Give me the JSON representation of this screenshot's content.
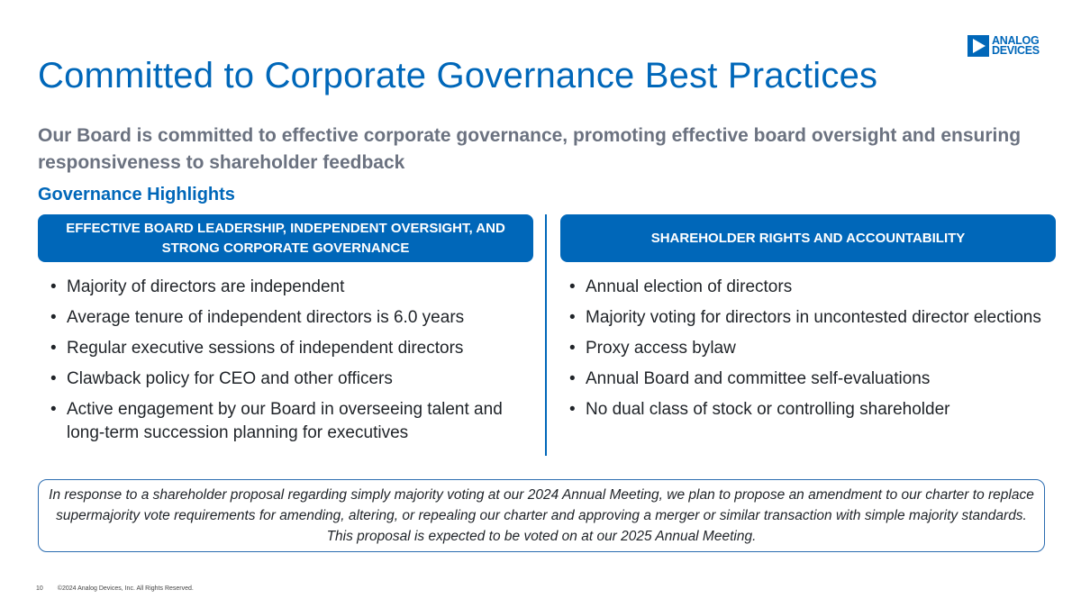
{
  "logo": {
    "line1": "ANALOG",
    "line2": "DEVICES",
    "brand_color": "#0067b9"
  },
  "title": "Committed to Corporate Governance Best Practices",
  "subtitle": "Our Board is committed to effective corporate governance, promoting effective board oversight and ensuring responsiveness to shareholder feedback",
  "section_heading": "Governance Highlights",
  "columns": [
    {
      "header": "EFFECTIVE BOARD LEADERSHIP, INDEPENDENT OVERSIGHT, AND STRONG CORPORATE GOVERNANCE",
      "items": [
        "Majority of directors are independent",
        "Average tenure of independent directors is 6.0 years",
        "Regular executive sessions of independent directors",
        "Clawback policy for CEO and other officers",
        "Active engagement by our Board in overseeing talent and long-term succession planning for executives"
      ]
    },
    {
      "header": "SHAREHOLDER RIGHTS AND ACCOUNTABILITY",
      "items": [
        "Annual election of directors",
        "Majority voting for directors in uncontested director elections",
        "Proxy access bylaw",
        "Annual Board and committee self-evaluations",
        "No dual class of stock or controlling shareholder"
      ]
    }
  ],
  "bullet_glyph": "•",
  "note": "In response to a shareholder proposal regarding simply majority voting at our 2024 Annual Meeting, we plan to propose an amendment to our charter to replace supermajority vote requirements for amending, altering, or repealing our charter and approving a merger or similar transaction with simple majority standards. This proposal is expected to be voted on at our 2025 Annual Meeting.",
  "footer": {
    "page_number": "10",
    "copyright": "©2024 Analog Devices, Inc. All Rights Reserved."
  }
}
